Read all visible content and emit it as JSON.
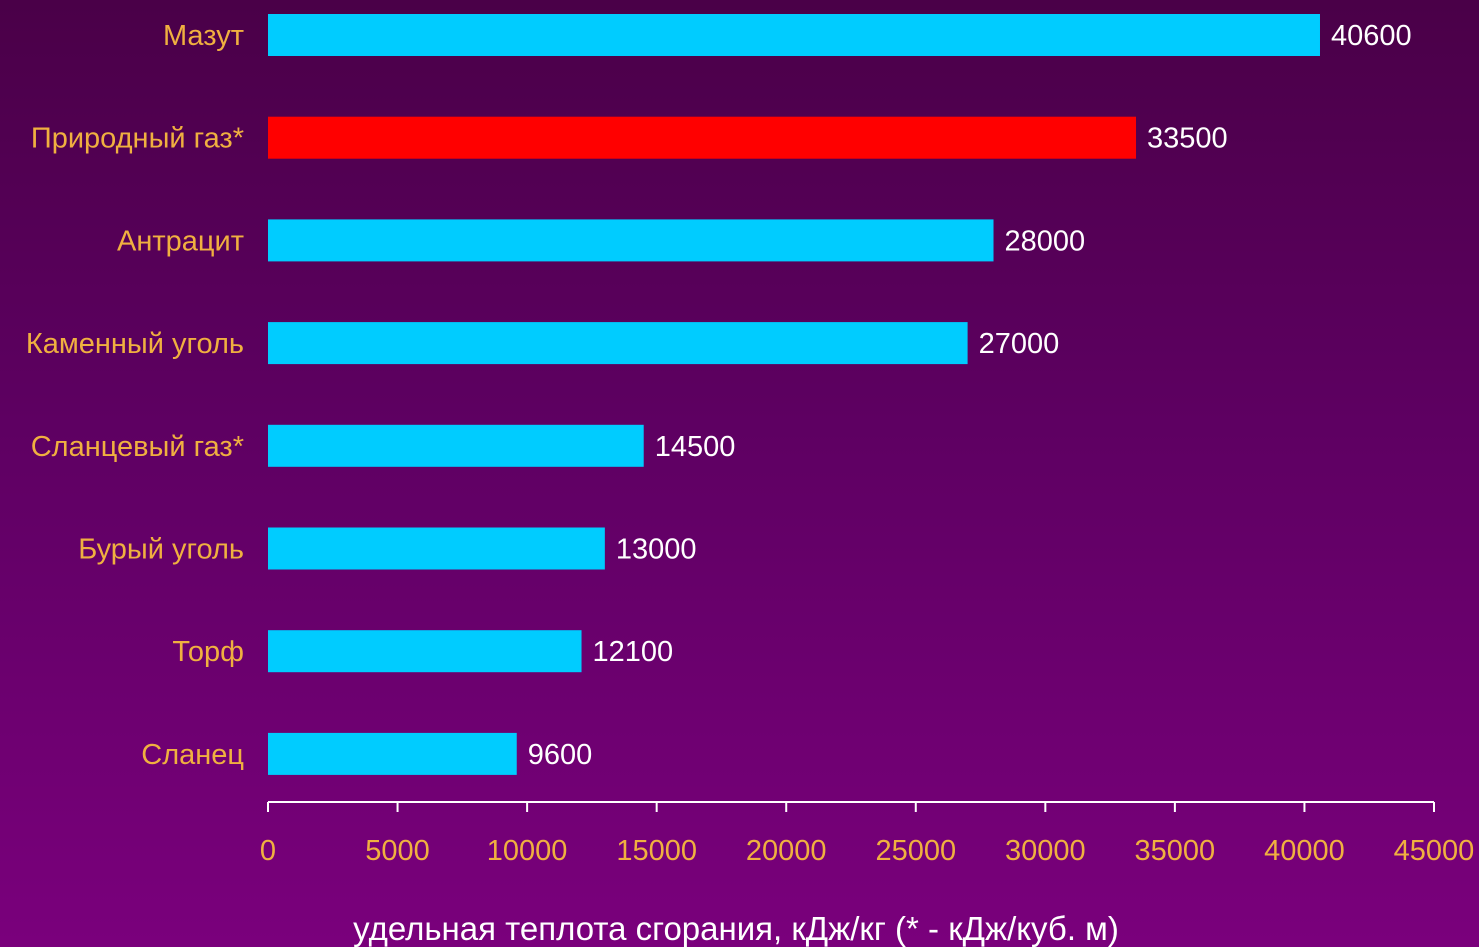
{
  "chart_data": {
    "type": "bar",
    "orientation": "horizontal",
    "categories": [
      "Мазут",
      "Природный газ*",
      "Антрацит",
      "Каменный уголь",
      "Сланцевый газ*",
      "Бурый уголь",
      "Торф",
      "Сланец"
    ],
    "values": [
      40600,
      33500,
      28000,
      27000,
      14500,
      13000,
      12100,
      9600
    ],
    "value_labels": [
      "40600",
      "33500",
      "28000",
      "27000",
      "14500",
      "13000",
      "12100",
      "9600"
    ],
    "xlabel": "удельная теплота сгорания, кДж/кг (* - кДж/куб. м)",
    "xlim": [
      0,
      45000
    ],
    "xticks": [
      0,
      5000,
      10000,
      15000,
      20000,
      25000,
      30000,
      35000,
      40000,
      45000
    ],
    "xtick_labels": [
      "0",
      "5000",
      "10000",
      "15000",
      "20000",
      "25000",
      "30000",
      "35000",
      "40000",
      "45000"
    ],
    "grid": false,
    "colors": {
      "bar": "#00ccff",
      "highlight_bar": "#ff0000",
      "category_text": "#f0b040",
      "value_text": "#ffffff",
      "axis": "#ffffff"
    },
    "highlight_index": 1
  }
}
